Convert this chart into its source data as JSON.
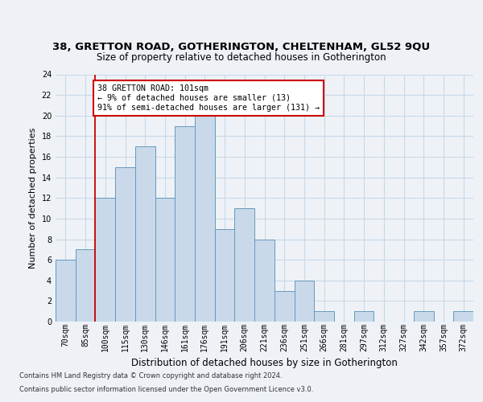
{
  "title1": "38, GRETTON ROAD, GOTHERINGTON, CHELTENHAM, GL52 9QU",
  "title2": "Size of property relative to detached houses in Gotherington",
  "xlabel": "Distribution of detached houses by size in Gotherington",
  "ylabel": "Number of detached properties",
  "categories": [
    "70sqm",
    "85sqm",
    "100sqm",
    "115sqm",
    "130sqm",
    "146sqm",
    "161sqm",
    "176sqm",
    "191sqm",
    "206sqm",
    "221sqm",
    "236sqm",
    "251sqm",
    "266sqm",
    "281sqm",
    "297sqm",
    "312sqm",
    "327sqm",
    "342sqm",
    "357sqm",
    "372sqm"
  ],
  "values": [
    6,
    7,
    12,
    15,
    17,
    12,
    19,
    20,
    9,
    11,
    8,
    3,
    4,
    1,
    0,
    1,
    0,
    0,
    1,
    0,
    1
  ],
  "bar_color": "#c9d9ea",
  "bar_edge_color": "#6699bb",
  "vline_color": "#cc0000",
  "annotation_text": "38 GRETTON ROAD: 101sqm\n← 9% of detached houses are smaller (13)\n91% of semi-detached houses are larger (131) →",
  "annotation_box_color": "#ffffff",
  "annotation_box_edge": "#cc0000",
  "ylim": [
    0,
    24
  ],
  "yticks": [
    0,
    2,
    4,
    6,
    8,
    10,
    12,
    14,
    16,
    18,
    20,
    22,
    24
  ],
  "footer1": "Contains HM Land Registry data © Crown copyright and database right 2024.",
  "footer2": "Contains public sector information licensed under the Open Government Licence v3.0.",
  "bg_color": "#eef2f7",
  "plot_bg_color": "#eef2f7",
  "grid_color": "#c8d8e8",
  "title1_fontsize": 9.5,
  "title2_fontsize": 8.5,
  "xlabel_fontsize": 8.5,
  "ylabel_fontsize": 8,
  "tick_fontsize": 7,
  "footer_fontsize": 6
}
